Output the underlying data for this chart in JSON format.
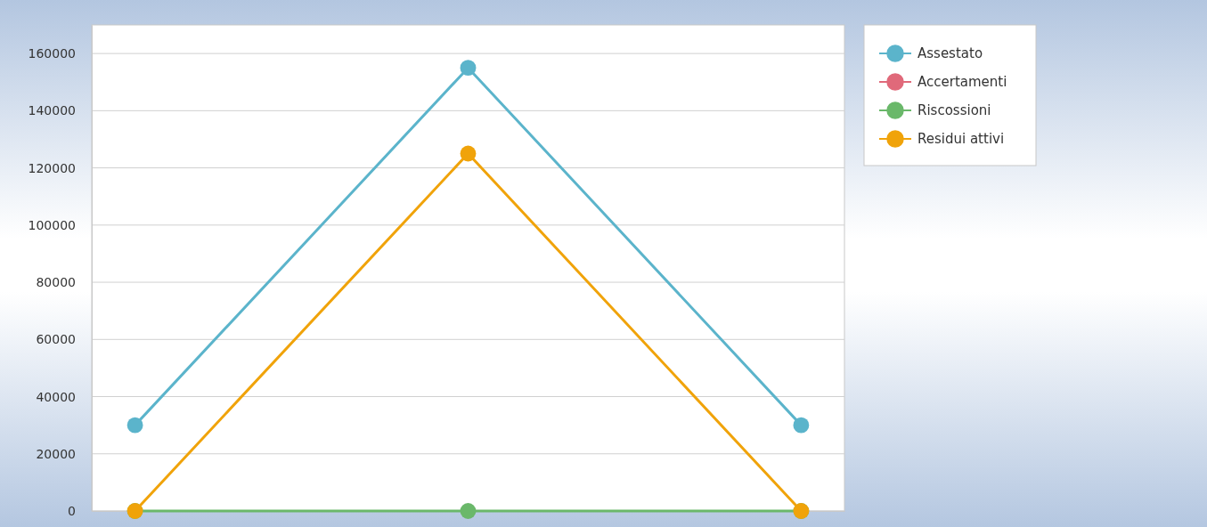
{
  "chart_data": {
    "type": "line",
    "categories": [
      null,
      null,
      null
    ],
    "series": [
      {
        "name": "Assestato",
        "color": "#5bb4cb",
        "values": [
          30000,
          155000,
          30000
        ]
      },
      {
        "name": "Accertamenti",
        "color": "#e0697a",
        "values": [
          null,
          null,
          null
        ]
      },
      {
        "name": "Riscossioni",
        "color": "#6ab86a",
        "values": [
          0,
          0,
          0
        ]
      },
      {
        "name": "Residui attivi",
        "color": "#f0a30a",
        "values": [
          0,
          125000,
          0
        ]
      }
    ],
    "ylim": [
      0,
      170000
    ],
    "yticks": [
      0,
      20000,
      40000,
      60000,
      80000,
      100000,
      120000,
      140000,
      160000
    ],
    "grid": "y",
    "legend": "right",
    "marker": "circle",
    "line_style": "solid"
  }
}
